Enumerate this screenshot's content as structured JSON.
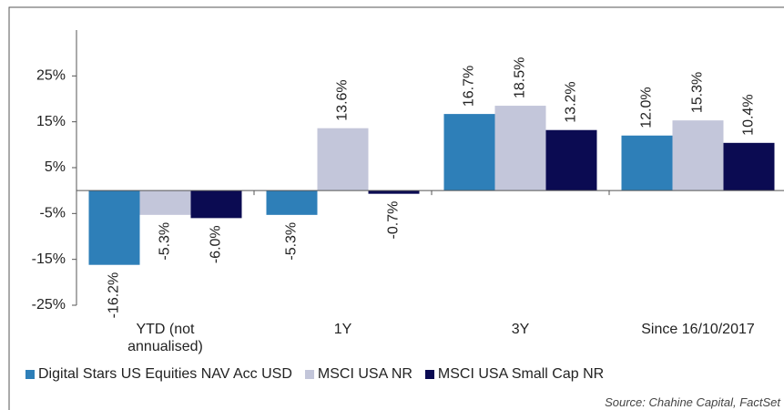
{
  "chart_data": {
    "type": "bar",
    "categories": [
      "YTD (not annualised)",
      "1Y",
      "3Y",
      "Since 16/10/2017"
    ],
    "series": [
      {
        "name": "Digital Stars US Equities NAV Acc USD",
        "color": "#2e7fb8",
        "values": [
          -16.2,
          -5.3,
          16.7,
          12.0
        ],
        "value_labels": [
          "-16.2%",
          "-5.3%",
          "16.7%",
          "12.0%"
        ]
      },
      {
        "name": "MSCI USA NR",
        "color": "#c3c6da",
        "values": [
          -5.3,
          13.6,
          18.5,
          15.3
        ],
        "value_labels": [
          "-5.3%",
          "13.6%",
          "18.5%",
          "15.3%"
        ]
      },
      {
        "name": "MSCI USA Small Cap NR",
        "color": "#0b0b52",
        "values": [
          -6.0,
          -0.7,
          13.2,
          10.4
        ],
        "value_labels": [
          "-6.0%",
          "-0.7%",
          "13.2%",
          "10.4%"
        ]
      }
    ],
    "ylim": [
      -25,
      35
    ],
    "yticks": [
      {
        "value": 25,
        "label": "25%"
      },
      {
        "value": 15,
        "label": "15%"
      },
      {
        "value": 5,
        "label": "5%"
      },
      {
        "value": -5,
        "label": "-5%"
      },
      {
        "value": -15,
        "label": "-15%"
      },
      {
        "value": -25,
        "label": "-25%"
      }
    ],
    "source": "Source: Chahine Capital, FactSet"
  }
}
